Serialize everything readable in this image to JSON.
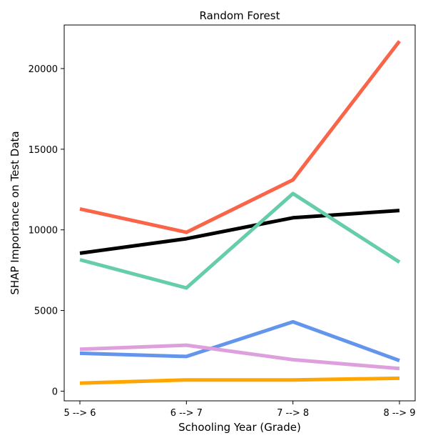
{
  "chart_data": {
    "type": "line",
    "title": "Random Forest",
    "xlabel": "Schooling Year (Grade)",
    "ylabel": "SHAP Importance on Test Data",
    "categories": [
      "5 --> 6",
      "6 --> 7",
      "7 --> 8",
      "8 --> 9"
    ],
    "ylim": [
      -600,
      22700
    ],
    "yticks": [
      0,
      5000,
      10000,
      15000,
      20000
    ],
    "grid": false,
    "series": [
      {
        "color": "#fa6449",
        "values": [
          11300,
          9850,
          13100,
          21700
        ]
      },
      {
        "color": "#000000",
        "values": [
          8550,
          9450,
          10750,
          11200
        ]
      },
      {
        "color": "#66cdaa",
        "values": [
          8150,
          6400,
          12250,
          8000
        ]
      },
      {
        "color": "#6495ed",
        "values": [
          2350,
          2150,
          4300,
          1900
        ]
      },
      {
        "color": "#dda0dd",
        "values": [
          2600,
          2850,
          1950,
          1400
        ]
      },
      {
        "color": "#ffa500",
        "values": [
          500,
          700,
          700,
          800
        ]
      }
    ]
  }
}
